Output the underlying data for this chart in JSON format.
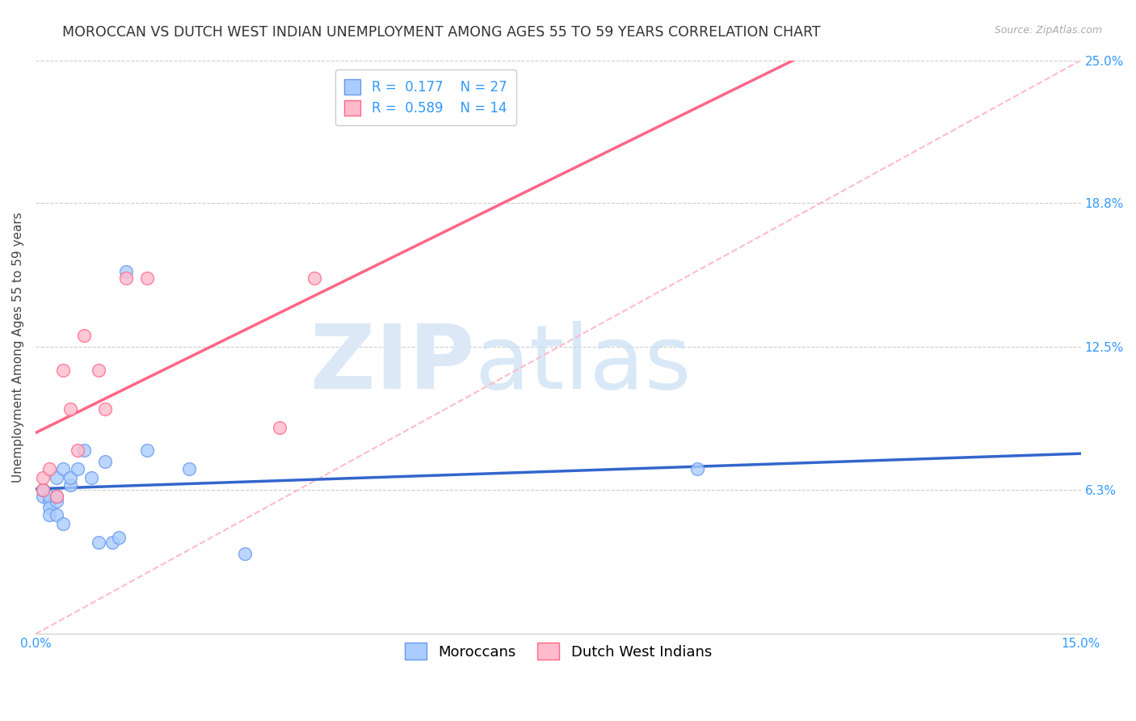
{
  "title": "MOROCCAN VS DUTCH WEST INDIAN UNEMPLOYMENT AMONG AGES 55 TO 59 YEARS CORRELATION CHART",
  "source": "Source: ZipAtlas.com",
  "ylabel": "Unemployment Among Ages 55 to 59 years",
  "xlim": [
    0.0,
    0.15
  ],
  "ylim": [
    0.0,
    0.25
  ],
  "ytick_right_vals": [
    0.063,
    0.125,
    0.188,
    0.25
  ],
  "ytick_right_labels": [
    "6.3%",
    "12.5%",
    "18.8%",
    "25.0%"
  ],
  "grid_color": "#cccccc",
  "background_color": "#ffffff",
  "moroccans_edge_color": "#6699ee",
  "moroccans_fill_color": "#aaccff",
  "dutch_edge_color": "#ff6688",
  "dutch_fill_color": "#ffbbcc",
  "blue_line_color": "#3366cc",
  "pink_line_color": "#ff6688",
  "ref_line_color": "#ffbbcc",
  "legend_R_blue": "R =  0.177",
  "legend_N_blue": "N = 27",
  "legend_R_pink": "R =  0.589",
  "legend_N_pink": "N = 14",
  "moroccans_x": [
    0.001,
    0.001,
    0.001,
    0.002,
    0.002,
    0.002,
    0.002,
    0.003,
    0.003,
    0.003,
    0.003,
    0.004,
    0.004,
    0.005,
    0.005,
    0.006,
    0.007,
    0.008,
    0.009,
    0.01,
    0.011,
    0.012,
    0.013,
    0.016,
    0.022,
    0.03,
    0.095
  ],
  "moroccans_y": [
    0.06,
    0.063,
    0.063,
    0.058,
    0.06,
    0.055,
    0.052,
    0.058,
    0.06,
    0.052,
    0.068,
    0.048,
    0.072,
    0.065,
    0.068,
    0.072,
    0.08,
    0.068,
    0.04,
    0.075,
    0.04,
    0.042,
    0.158,
    0.08,
    0.072,
    0.035,
    0.072
  ],
  "dutch_x": [
    0.001,
    0.001,
    0.002,
    0.003,
    0.004,
    0.005,
    0.006,
    0.007,
    0.009,
    0.01,
    0.013,
    0.016,
    0.035,
    0.04
  ],
  "dutch_y": [
    0.063,
    0.068,
    0.072,
    0.06,
    0.115,
    0.098,
    0.08,
    0.13,
    0.115,
    0.098,
    0.155,
    0.155,
    0.09,
    0.155
  ],
  "ref_line_x": [
    0.0,
    0.15
  ],
  "ref_line_y": [
    0.0,
    0.25
  ],
  "watermark_zip": "ZIP",
  "watermark_atlas": "atlas",
  "title_fontsize": 12.5,
  "label_fontsize": 11,
  "tick_fontsize": 11,
  "legend_fontsize": 12,
  "marker_size": 130
}
